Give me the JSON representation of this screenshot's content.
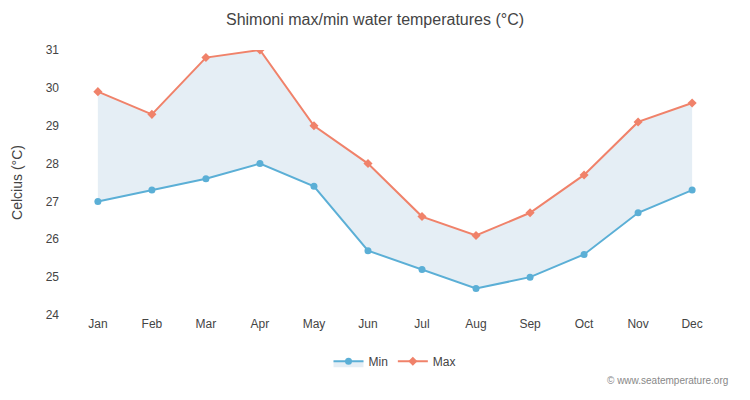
{
  "chart_data": {
    "type": "line",
    "title": "Shimoni max/min water temperatures (°C)",
    "y_label": "Celcius (°C)",
    "categories": [
      "Jan",
      "Feb",
      "Mar",
      "Apr",
      "May",
      "Jun",
      "Jul",
      "Aug",
      "Sep",
      "Oct",
      "Nov",
      "Dec"
    ],
    "series": [
      {
        "name": "Max",
        "color": "#f0826a",
        "marker": "diamond",
        "values": [
          29.9,
          29.3,
          30.8,
          31.0,
          29.0,
          28.0,
          26.6,
          26.1,
          26.7,
          27.7,
          29.1,
          29.6
        ]
      },
      {
        "name": "Min",
        "color": "#5bafd6",
        "marker": "circle",
        "values": [
          27.0,
          27.3,
          27.6,
          28.0,
          27.4,
          25.7,
          25.2,
          24.7,
          25.0,
          25.6,
          26.7,
          27.3
        ]
      }
    ],
    "ylim": [
      24,
      31
    ],
    "yticks": [
      24,
      25,
      26,
      27,
      28,
      29,
      30,
      31
    ],
    "grid": false,
    "legend": "bottom",
    "annotations": [
      "© www.seatemperature.org"
    ]
  }
}
